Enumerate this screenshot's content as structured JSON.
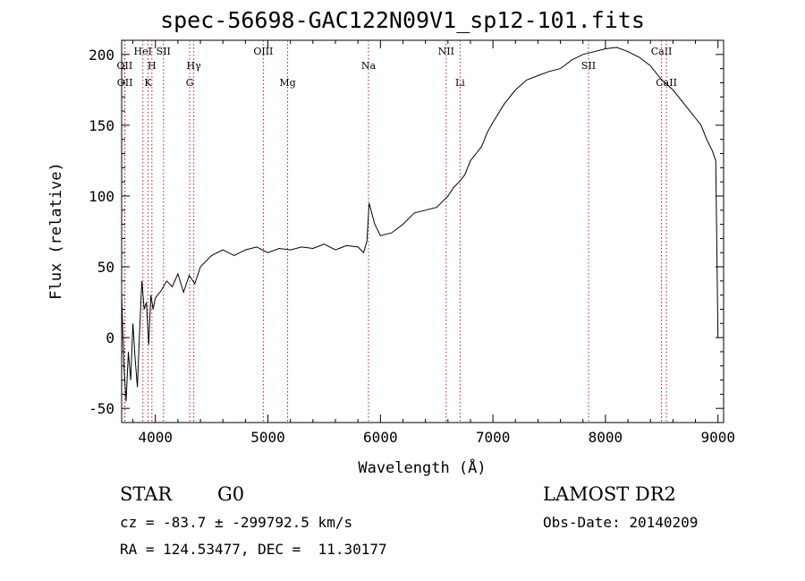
{
  "header": {
    "title": "spec-56698-GAC122N09V1_sp12-101.fits"
  },
  "info": {
    "object_type": "STAR",
    "subclass": "G0",
    "survey": "LAMOST DR2",
    "cz_line": "cz = -83.7 ± -299792.5 km/s",
    "obs_date": "Obs-Date: 20140209",
    "radec": "RA = 124.53477, DEC =  11.30177"
  },
  "chart_data": {
    "type": "line",
    "title": "spec-56698-GAC122N09V1_sp12-101.fits",
    "xlabel": "Wavelength (Å)",
    "ylabel": "Flux (relative)",
    "xlim": [
      3700,
      9050
    ],
    "ylim": [
      -60,
      210
    ],
    "xticks": [
      4000,
      5000,
      6000,
      7000,
      8000,
      9000
    ],
    "yticks": [
      -50,
      0,
      50,
      100,
      150,
      200
    ],
    "grid": false,
    "line_color": "#000000",
    "marker_color": "#b22222",
    "lines": [
      {
        "label": "OII",
        "x": 3727,
        "row": 2
      },
      {
        "label": "OII",
        "x": 3729,
        "row": 3
      },
      {
        "label": "HeI",
        "x": 3889,
        "row": 1
      },
      {
        "label": "K",
        "x": 3934,
        "row": 3
      },
      {
        "label": "H",
        "x": 3969,
        "row": 2
      },
      {
        "label": "SII",
        "x": 4072,
        "row": 1
      },
      {
        "label": "Hγ",
        "x": 4341,
        "row": 2
      },
      {
        "label": "G",
        "x": 4305,
        "row": 3
      },
      {
        "label": "OIII",
        "x": 4959,
        "row": 1
      },
      {
        "label": "Mg",
        "x": 5175,
        "row": 3
      },
      {
        "label": "Na",
        "x": 5894,
        "row": 2
      },
      {
        "label": "NII",
        "x": 6584,
        "row": 1
      },
      {
        "label": "Li",
        "x": 6708,
        "row": 3
      },
      {
        "label": "SII",
        "x": 7850,
        "row": 2
      },
      {
        "label": "CaII",
        "x": 8498,
        "row": 1
      },
      {
        "label": "CaII",
        "x": 8542,
        "row": 3
      }
    ],
    "series": [
      {
        "x": [
          3700,
          3720,
          3740,
          3760,
          3780,
          3800,
          3820,
          3840,
          3860,
          3880,
          3900,
          3920,
          3940,
          3960,
          3980,
          4000,
          4050,
          4100,
          4150,
          4200,
          4250,
          4300,
          4350,
          4400,
          4500,
          4600,
          4700,
          4800,
          4900,
          5000,
          5100,
          5200,
          5300,
          5400,
          5500,
          5600,
          5700,
          5800,
          5850,
          5880,
          5900,
          5950,
          6000,
          6100,
          6200,
          6300,
          6400,
          6500,
          6550,
          6600,
          6650,
          6700,
          6750,
          6800,
          6850,
          6900,
          6950,
          7000,
          7100,
          7200,
          7300,
          7400,
          7500,
          7600,
          7700,
          7800,
          7900,
          8000,
          8100,
          8200,
          8300,
          8400,
          8500,
          8600,
          8700,
          8800,
          8850,
          8900,
          8950,
          8980,
          9000
        ],
        "y": [
          30,
          -20,
          -45,
          -10,
          -30,
          10,
          -15,
          -35,
          5,
          40,
          20,
          25,
          -5,
          30,
          20,
          28,
          33,
          40,
          36,
          45,
          32,
          44,
          38,
          50,
          58,
          62,
          58,
          62,
          64,
          60,
          63,
          62,
          64,
          63,
          66,
          62,
          65,
          64,
          60,
          68,
          95,
          80,
          72,
          74,
          80,
          88,
          90,
          92,
          96,
          100,
          106,
          110,
          115,
          125,
          130,
          135,
          145,
          152,
          165,
          175,
          182,
          185,
          188,
          190,
          196,
          200,
          202,
          204,
          205,
          202,
          198,
          192,
          182,
          175,
          165,
          155,
          150,
          140,
          132,
          125,
          0
        ]
      }
    ]
  }
}
